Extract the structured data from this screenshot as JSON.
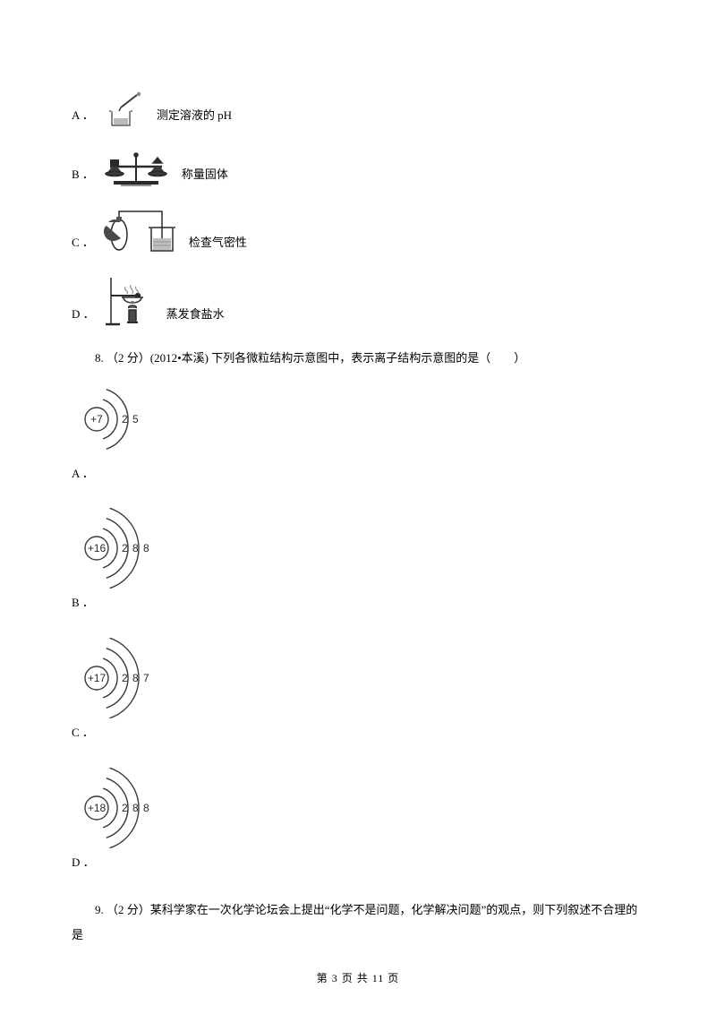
{
  "q7": {
    "options": [
      {
        "label": "A ．",
        "text": "测定溶液的 pH"
      },
      {
        "label": "B ．",
        "text": "称量固体"
      },
      {
        "label": "C ．",
        "text": "检查气密性"
      },
      {
        "label": "D ．",
        "text": "蒸发食盐水"
      }
    ]
  },
  "q8": {
    "text": "8. （2 分）(2012•本溪) 下列各微粒结构示意图中，表示离子结构示意图的是（　　）",
    "options": [
      {
        "label": "A ．",
        "nucleus": "+7",
        "shells": [
          2,
          5
        ]
      },
      {
        "label": "B ．",
        "nucleus": "+16",
        "shells": [
          2,
          8,
          8
        ]
      },
      {
        "label": "C ．",
        "nucleus": "+17",
        "shells": [
          2,
          8,
          7
        ]
      },
      {
        "label": "D ．",
        "nucleus": "+18",
        "shells": [
          2,
          8,
          8
        ]
      }
    ]
  },
  "q9": {
    "text": "9. （2 分）某科学家在一次化学论坛会上提出“化学不是问题，化学解决问题”的观点，则下列叙述不合理的是"
  },
  "footer": "第 3 页 共 11 页",
  "style": {
    "svg_stroke": "#3a3a3a",
    "svg_fill_dark": "#4a4a4a",
    "svg_fill_grey": "#888888"
  }
}
